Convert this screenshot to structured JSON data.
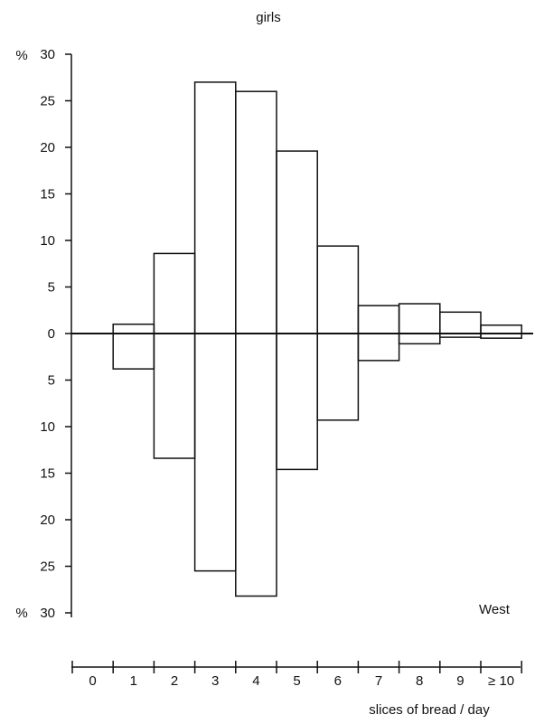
{
  "chart_data": {
    "type": "bar",
    "title": "girls",
    "xlabel": "slices of bread / day",
    "categories": [
      "0",
      "1",
      "2",
      "3",
      "4",
      "5",
      "6",
      "7",
      "8",
      "9",
      "≥ 10"
    ],
    "series": [
      {
        "values": [
          0,
          1.0,
          8.6,
          27.0,
          26.0,
          19.6,
          9.4,
          3.0,
          3.2,
          2.3,
          0.9
        ]
      },
      {
        "values": [
          0,
          3.8,
          13.4,
          25.5,
          28.2,
          14.6,
          9.3,
          2.9,
          1.1,
          0.4,
          0.5
        ]
      }
    ],
    "y_ticks": [
      "30",
      "25",
      "20",
      "15",
      "10",
      "5",
      "0",
      "5",
      "10",
      "15",
      "20",
      "25",
      "30"
    ],
    "y_unit": "%",
    "ylim": [
      -30,
      30
    ],
    "annotation": "West"
  }
}
